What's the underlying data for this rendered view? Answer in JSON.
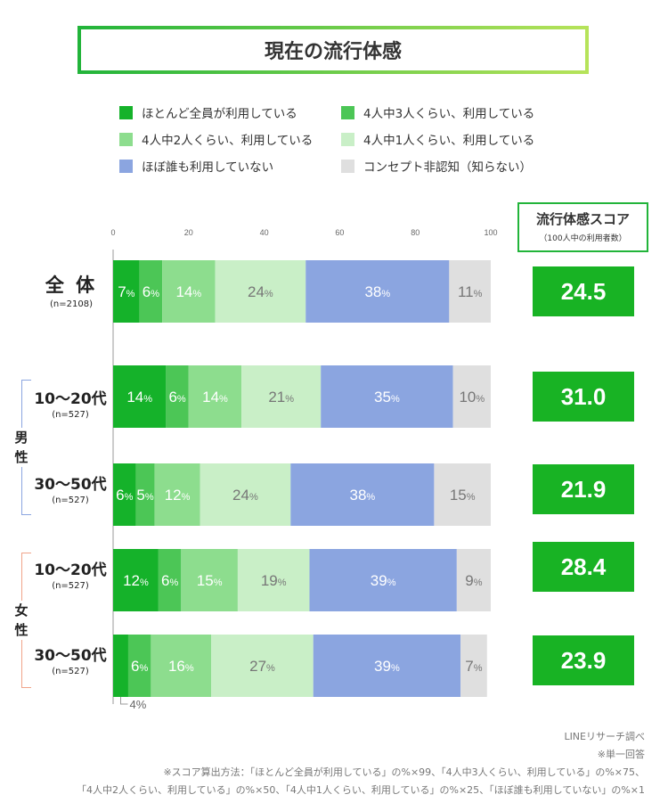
{
  "title": "現在の流行体感",
  "legend": [
    {
      "label": "ほとんど全員が利用している",
      "color": "#15b22a"
    },
    {
      "label": "4人中3人くらい、利用している",
      "color": "#4cc656"
    },
    {
      "label": "4人中2人くらい、利用している",
      "color": "#8ddd8e"
    },
    {
      "label": "4人中1人くらい、利用している",
      "color": "#c9efc7"
    },
    {
      "label": "ほぼ誰も利用していない",
      "color": "#8ba5e0"
    },
    {
      "label": "コンセプト非認知（知らない）",
      "color": "#dfdfdf"
    }
  ],
  "score_header": {
    "title": "流行体感スコア",
    "subtitle": "（100人中の利用者数）"
  },
  "groups": {
    "male": "男\n性",
    "female": "女\n性"
  },
  "rows": [
    {
      "label": "全 体",
      "n": "(n=2108)",
      "score": "24.5"
    },
    {
      "label": "10〜20代",
      "n": "(n=527)",
      "score": "31.0"
    },
    {
      "label": "30〜50代",
      "n": "(n=527)",
      "score": "21.9"
    },
    {
      "label": "10〜20代",
      "n": "(n=527)",
      "score": "28.4"
    },
    {
      "label": "30〜50代",
      "n": "(n=527)",
      "score": "23.9"
    }
  ],
  "small_note": "4%",
  "chart_data": {
    "type": "bar",
    "orientation": "horizontal",
    "stacked": true,
    "xlim": [
      0,
      100
    ],
    "xticks": [
      "0",
      "20",
      "40",
      "60",
      "80",
      "100"
    ],
    "categories": [
      "全体",
      "男性 10〜20代",
      "男性 30〜50代",
      "女性 10〜20代",
      "女性 30〜50代"
    ],
    "series": [
      {
        "name": "ほとんど全員が利用している",
        "values": [
          7,
          14,
          6,
          12,
          4
        ]
      },
      {
        "name": "4人中3人くらい、利用している",
        "values": [
          6,
          6,
          5,
          6,
          6
        ]
      },
      {
        "name": "4人中2人くらい、利用している",
        "values": [
          14,
          14,
          12,
          15,
          16
        ]
      },
      {
        "name": "4人中1人くらい、利用している",
        "values": [
          24,
          21,
          24,
          19,
          27
        ]
      },
      {
        "name": "ほぼ誰も利用していない",
        "values": [
          38,
          35,
          38,
          39,
          39
        ]
      },
      {
        "name": "コンセプト非認知（知らない）",
        "values": [
          11,
          10,
          15,
          9,
          7
        ]
      }
    ],
    "data_labels": [
      [
        "7",
        "6",
        "14",
        "24",
        "38",
        "11"
      ],
      [
        "14",
        "6",
        "14",
        "21",
        "35",
        "10"
      ],
      [
        "6",
        "5",
        "12",
        "24",
        "38",
        "15"
      ],
      [
        "12",
        "6",
        "15",
        "19",
        "39",
        "9"
      ],
      [
        "",
        "6",
        "16",
        "27",
        "39",
        "7"
      ]
    ],
    "label_suffix": "%",
    "label_colors": [
      "#ffffff",
      "#ffffff",
      "#ffffff",
      "#777777",
      "#ffffff",
      "#777777"
    ]
  },
  "footnotes": [
    "LINEリサーチ調べ",
    "※単一回答",
    "※スコア算出方法：「ほとんど全員が利用している」の%×99、「4人中3人くらい、利用している」の%×75、",
    "「4人中2人くらい、利用している」の%×50、「4人中1人くらい、利用している」の%×25、「ほぼ誰も利用していない」の%×1"
  ]
}
